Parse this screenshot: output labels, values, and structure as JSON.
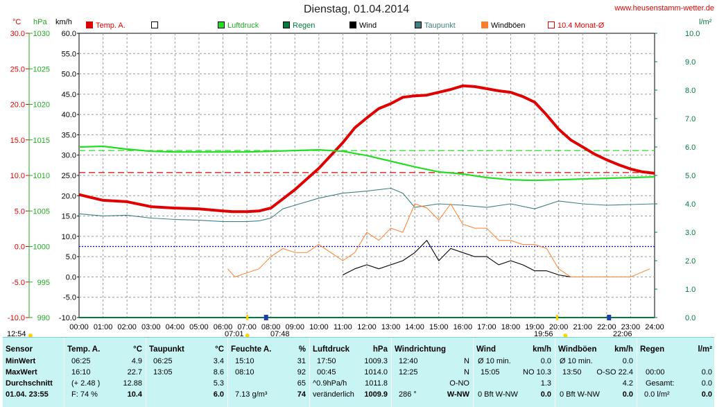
{
  "site": "www.heusenstamm-wetter.de",
  "title": "Dienstag, 01.04.2014",
  "axis_units": {
    "temp": "°C",
    "hpa": "hPa",
    "kmh": "km/h",
    "rain": "l/m²"
  },
  "legend": [
    {
      "label": "Temp. A.",
      "color": "#e00000"
    },
    {
      "label": "",
      "color": "#ffffff"
    },
    {
      "label": "Luftdruck",
      "color": "#22dd22"
    },
    {
      "label": "Regen",
      "color": "#007a3d"
    },
    {
      "label": "Wind",
      "color": "#000000"
    },
    {
      "label": "Taupunkt",
      "color": "#3f7f80"
    },
    {
      "label": "Windböen",
      "color": "#ff7f2a"
    },
    {
      "label": "10.4 Monat-Ø",
      "color": "#ffffff"
    }
  ],
  "sun_markers": {
    "left": "12:54",
    "sunrise": "07:01",
    "sunrise2": "07:48",
    "sunset": "19:56",
    "sunset2": "22:06"
  },
  "chart_data": {
    "type": "line",
    "x_ticks": [
      "00:00",
      "01:00",
      "02:00",
      "03:00",
      "04:00",
      "05:00",
      "06:00",
      "07:00",
      "08:00",
      "09:00",
      "10:00",
      "11:00",
      "12:00",
      "13:00",
      "14:00",
      "15:00",
      "16:00",
      "17:00",
      "18:00",
      "19:00",
      "20:00",
      "21:00",
      "22:00",
      "23:00",
      "24:00"
    ],
    "y_kmh_ticks": [
      "-10.0",
      "-5.0",
      "0.0",
      "5.0",
      "10.0",
      "15.0",
      "20.0",
      "25.0",
      "30.0",
      "35.0",
      "40.0",
      "45.0",
      "50.0",
      "55.0",
      "60.0"
    ],
    "y_temp_ticks": [
      "-10.0",
      "-5.0",
      "0.0",
      "5.0",
      "10.0",
      "15.0",
      "20.0",
      "25.0",
      "30.0"
    ],
    "y_hpa_ticks": [
      "990",
      "995",
      "1000",
      "1005",
      "1010",
      "1015",
      "1020",
      "1025",
      "1030"
    ],
    "y_rain_ticks": [
      "0.0",
      "1.0",
      "2.0",
      "3.0",
      "4.0",
      "5.0",
      "6.0",
      "7.0",
      "8.0",
      "9.0",
      "10.0"
    ],
    "ylim_kmh": [
      -10,
      60
    ],
    "ylim_temp": [
      -10,
      30
    ],
    "ylim_hpa": [
      990,
      1030
    ],
    "ylim_rain": [
      0,
      10
    ],
    "grid": true,
    "series": [
      {
        "name": "Temp. A.",
        "color": "#e00000",
        "axis": "temp",
        "x": [
          0,
          1,
          2,
          3,
          4,
          5,
          6,
          6.4,
          7,
          7.5,
          8,
          8.5,
          9,
          9.5,
          10,
          10.5,
          11,
          11.5,
          12,
          12.5,
          13,
          13.5,
          14,
          14.5,
          15,
          15.5,
          16,
          16.5,
          17,
          17.5,
          18,
          18.5,
          19,
          19.5,
          20,
          20.5,
          21,
          21.5,
          22,
          22.5,
          23,
          23.5,
          24
        ],
        "y": [
          7.3,
          6.5,
          6.3,
          5.6,
          5.4,
          5.3,
          5.0,
          4.9,
          4.9,
          5.0,
          5.4,
          6.7,
          8.0,
          9.5,
          11.0,
          12.8,
          14.6,
          16.7,
          18.1,
          19.4,
          20.1,
          21.0,
          21.2,
          21.3,
          21.7,
          22.1,
          22.6,
          22.5,
          22.2,
          21.9,
          21.7,
          21.1,
          20.3,
          18.5,
          16.5,
          15.0,
          14.0,
          13.0,
          12.2,
          11.5,
          10.9,
          10.5,
          10.3
        ]
      },
      {
        "name": "Luftdruck",
        "color": "#22dd22",
        "axis": "hpa",
        "x": [
          0,
          1,
          2,
          3,
          4,
          5,
          6,
          7,
          8,
          9,
          10,
          11,
          12,
          13,
          14,
          15,
          16,
          17,
          18,
          19,
          20,
          21,
          22,
          23,
          24
        ],
        "y": [
          1014.0,
          1014.1,
          1013.7,
          1013.4,
          1013.3,
          1013.3,
          1013.3,
          1013.3,
          1013.4,
          1013.5,
          1013.6,
          1013.4,
          1012.8,
          1012.0,
          1011.2,
          1010.5,
          1010.2,
          1009.7,
          1009.4,
          1009.3,
          1009.4,
          1009.5,
          1009.6,
          1009.7,
          1009.8
        ]
      },
      {
        "name": "Taupunkt",
        "color": "#3f7f80",
        "axis": "temp",
        "x": [
          0,
          1,
          2,
          3,
          4,
          5,
          6,
          7,
          7.5,
          8,
          8.5,
          9,
          10,
          11,
          12,
          13,
          13.5,
          14,
          15,
          16,
          17,
          18,
          19,
          20,
          21,
          22,
          23,
          24
        ],
        "y": [
          4.6,
          4.3,
          4.4,
          4.0,
          3.8,
          3.7,
          3.5,
          3.5,
          3.6,
          4.0,
          5.3,
          5.8,
          6.8,
          7.5,
          7.8,
          8.2,
          7.5,
          5.5,
          6.0,
          5.8,
          5.5,
          6.0,
          5.3,
          6.4,
          6.0,
          5.8,
          5.9,
          6.0
        ]
      },
      {
        "name": "Wind",
        "color": "#000000",
        "axis": "kmh",
        "x": [
          11,
          11.5,
          12,
          12.5,
          13,
          13.5,
          14,
          14.5,
          15,
          15.5,
          16,
          16.5,
          17,
          17.5,
          18,
          18.5,
          19,
          19.5,
          20,
          20.5
        ],
        "y": [
          0.5,
          2,
          3,
          2,
          3,
          4,
          6,
          9,
          4,
          7,
          6,
          5,
          5,
          3,
          4,
          3,
          1.5,
          1.5,
          0.5,
          0
        ]
      },
      {
        "name": "Windböen",
        "color": "#ff7f2a",
        "axis": "kmh",
        "x": [
          6.2,
          6.5,
          7.5,
          8,
          8.5,
          9,
          9.5,
          10,
          10.5,
          11,
          11.5,
          12,
          12.5,
          13,
          13.5,
          14,
          14.5,
          15,
          15.5,
          16,
          16.5,
          17,
          17.5,
          18,
          18.5,
          19,
          19.5,
          20,
          20.5,
          21,
          22,
          23,
          23.8
        ],
        "y": [
          2,
          0,
          2,
          5,
          7,
          6,
          6,
          8,
          6,
          4,
          6,
          11,
          9,
          12,
          11,
          18,
          17,
          14,
          18,
          13,
          12,
          12,
          9,
          9,
          8,
          8,
          7,
          2,
          0,
          0,
          0,
          0,
          2
        ]
      },
      {
        "name": "Regen",
        "color": "#007a3d",
        "axis": "rain",
        "x": [
          0,
          24
        ],
        "y": [
          0,
          0
        ]
      }
    ],
    "reference_lines": [
      {
        "color": "#e00000",
        "axis": "temp",
        "value": 10.4
      },
      {
        "color": "#22dd22",
        "axis": "hpa",
        "value": 1013.5
      },
      {
        "color": "#0000cc",
        "axis": "temp",
        "value": 0
      }
    ]
  },
  "stats": {
    "row_labels": {
      "sensor": "Sensor",
      "min": "MinWert",
      "max": "MaxWert",
      "avg": "Durchschnitt",
      "now": "01.04. 23:55"
    },
    "temp": {
      "header": "Temp. A.",
      "unit": "°C",
      "min_time": "06:25",
      "min_val": "4.9",
      "max_time": "16:10",
      "max_val": "22.7",
      "avg_diff": "(+ 2.48 )",
      "avg_val": "12.88",
      "now_extra": "F: 74 %",
      "now_val": "10.4"
    },
    "dew": {
      "header": "Taupunkt",
      "unit": "°C",
      "min_time": "06:25",
      "min_val": "3.4",
      "max_time": "13:05",
      "max_val": "8.6",
      "avg_val": "5.3",
      "now_val": "6.0"
    },
    "hum": {
      "header": "Feuchte A.",
      "unit": "%",
      "min_time": "15:10",
      "min_val": "31",
      "max_time": "08:10",
      "max_val": "92",
      "avg_val": "65",
      "now_extra": "7.13 g/m³",
      "now_val": "74"
    },
    "press": {
      "header": "Luftdruck",
      "unit": "hPa",
      "min_time": "17:50",
      "min_val": "1009.3",
      "max_time": "00:45",
      "max_val": "1014.0",
      "avg_label": "^0.9hPa/h",
      "avg_val": "1011.8",
      "now_extra": "veränderlich",
      "now_val": "1009.9"
    },
    "dir": {
      "header": "Windrichtung",
      "min_time": "12:40",
      "min_val": "N",
      "max_time": "12:25",
      "max_val": "N",
      "avg_val": "O-NO",
      "now_extra": "286 °",
      "now_val": "W-NW"
    },
    "wind": {
      "header": "Wind",
      "unit": "km/h",
      "min_time": "Ø 10 min.",
      "min_val": "0.0",
      "max_time": "15:05",
      "max_val": "NO 10.3",
      "avg_val": "1.3",
      "now_extra": "0 Bft W-NW",
      "now_val": "0.0"
    },
    "gust": {
      "header": "Windböen",
      "unit": "km/h",
      "min_time": "Ø 10 min.",
      "min_val": "0.0",
      "max_time": "13:50",
      "max_val": "O-SO 22.4",
      "avg_val": "4.2",
      "now_extra": "0 Bft W-NW",
      "now_val": "0.0"
    },
    "rain": {
      "header": "Regen",
      "unit": "l/m²",
      "max_time": "00:00",
      "max_val": "0.0",
      "avg_label": "Gesamt:",
      "avg_val": "0.0",
      "now_extra": "0.0 l/m²",
      "now_val": "0.0"
    }
  }
}
